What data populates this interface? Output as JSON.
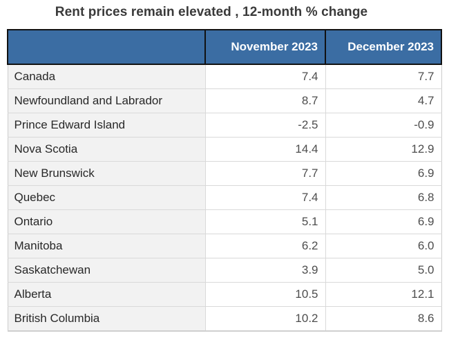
{
  "title": "Rent prices remain elevated , 12-month % change",
  "chart_data": {
    "type": "table",
    "title": "Rent prices remain elevated , 12-month % change",
    "columns": [
      "",
      "November 2023",
      "December 2023"
    ],
    "rows": [
      {
        "label": "Canada",
        "nov": "7.4",
        "dec": "7.7"
      },
      {
        "label": "Newfoundland and Labrador",
        "nov": "8.7",
        "dec": "4.7"
      },
      {
        "label": "Prince Edward Island",
        "nov": "-2.5",
        "dec": "-0.9"
      },
      {
        "label": "Nova Scotia",
        "nov": "14.4",
        "dec": "12.9"
      },
      {
        "label": "New Brunswick",
        "nov": "7.7",
        "dec": "6.9"
      },
      {
        "label": "Quebec",
        "nov": "7.4",
        "dec": "6.8"
      },
      {
        "label": "Ontario",
        "nov": "5.1",
        "dec": "6.9"
      },
      {
        "label": "Manitoba",
        "nov": "6.2",
        "dec": "6.0"
      },
      {
        "label": "Saskatchewan",
        "nov": "3.9",
        "dec": "5.0"
      },
      {
        "label": "Alberta",
        "nov": "10.5",
        "dec": "12.1"
      },
      {
        "label": "British Columbia",
        "nov": "10.2",
        "dec": "8.6"
      }
    ],
    "header": {
      "col_november": "November 2023",
      "col_december": "December 2023"
    },
    "layout": {
      "grid": "on",
      "value_alignment": "right"
    }
  },
  "colors": {
    "header_background": "#3b6da3",
    "header_text": "#ffffff",
    "header_border": "#111111",
    "label_column_background": "#f2f2f2",
    "row_divider": "#d9d9d9",
    "title_text": "#3a3a3a",
    "number_text": "#4d4d4d"
  }
}
